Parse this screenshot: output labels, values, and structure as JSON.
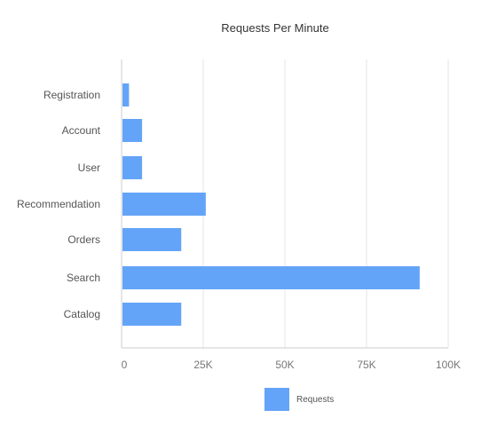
{
  "chart_data": {
    "type": "bar",
    "orientation": "horizontal",
    "title": "Requests Per Minute",
    "categories": [
      "Registration",
      "Account",
      "User",
      "Recommendation",
      "Orders",
      "Search",
      "Catalog"
    ],
    "series": [
      {
        "name": "Requests",
        "values": [
          2000,
          6000,
          6000,
          25500,
          18000,
          91000,
          18000
        ]
      }
    ],
    "xlim": [
      0,
      100000
    ],
    "x_ticks": [
      0,
      25000,
      50000,
      75000,
      100000
    ],
    "x_tick_labels": [
      "0",
      "25K",
      "50K",
      "75K",
      "100K"
    ],
    "xlabel": "",
    "ylabel": "",
    "grid": true,
    "legend_position": "bottom",
    "bar_color": "#64a4f8",
    "grid_color": "#e4e4e4",
    "axis_color": "#cccccc"
  }
}
